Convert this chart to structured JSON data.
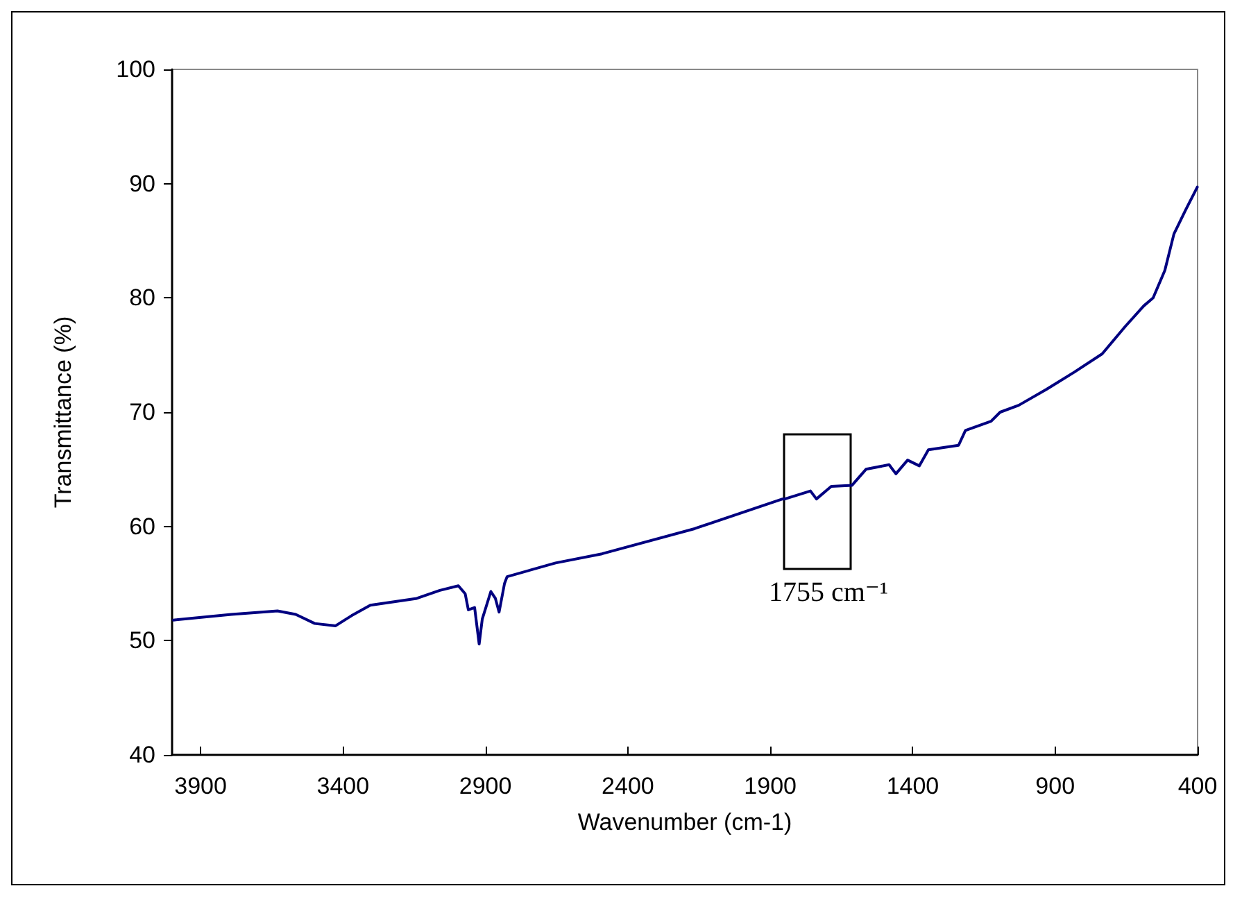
{
  "chart_data": {
    "type": "line",
    "xlabel": "Wavenumber (cm-1)",
    "ylabel": "Transmittance (%)",
    "xlim": [
      4000,
      400
    ],
    "xticks": [
      3900,
      3400,
      2900,
      2400,
      1900,
      1400,
      900,
      400
    ],
    "ylim": [
      40,
      100
    ],
    "yticks": [
      40,
      50,
      60,
      70,
      80,
      90,
      100
    ],
    "grid": false,
    "marker": "none",
    "line_style": "solid",
    "annotations": [
      "1755 cm⁻¹"
    ],
    "series": [
      {
        "color": "#000080",
        "x": [
          3995,
          3792,
          3630,
          3566,
          3499,
          3426,
          3369,
          3304,
          3141,
          3060,
          2995,
          2971,
          2960,
          2938,
          2922,
          2911,
          2881,
          2865,
          2852,
          2833,
          2824,
          2654,
          2491,
          2166,
          1857,
          1849,
          1759,
          1738,
          1686,
          1613,
          1564,
          1483,
          1459,
          1418,
          1377,
          1345,
          1239,
          1215,
          1125,
          1093,
          1028,
          930,
          833,
          735,
          654,
          589,
          556,
          515,
          483,
          442,
          401
        ],
        "values": [
          51.8,
          52.3,
          52.6,
          52.3,
          51.5,
          51.3,
          52.2,
          53.1,
          53.7,
          54.4,
          54.8,
          54.1,
          52.7,
          52.9,
          49.7,
          51.9,
          54.3,
          53.7,
          52.5,
          55.0,
          55.6,
          56.8,
          57.6,
          59.8,
          62.4,
          62.4,
          63.1,
          62.4,
          63.5,
          63.6,
          65.0,
          65.4,
          64.6,
          65.8,
          65.3,
          66.7,
          67.1,
          68.4,
          69.2,
          70.0,
          70.6,
          72.0,
          73.5,
          75.1,
          77.5,
          79.3,
          80.0,
          82.4,
          85.6,
          87.7,
          89.7
        ]
      }
    ]
  }
}
